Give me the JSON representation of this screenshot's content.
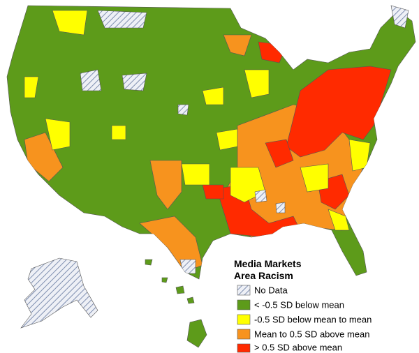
{
  "legend": {
    "title_lines": [
      "Media Markets",
      "Area Racism"
    ],
    "items": [
      "No Data",
      "< -0.5 SD below mean",
      "-0.5 SD below mean to mean",
      "Mean to 0.5 SD above mean",
      "> 0.5 SD above mean"
    ]
  }
}
